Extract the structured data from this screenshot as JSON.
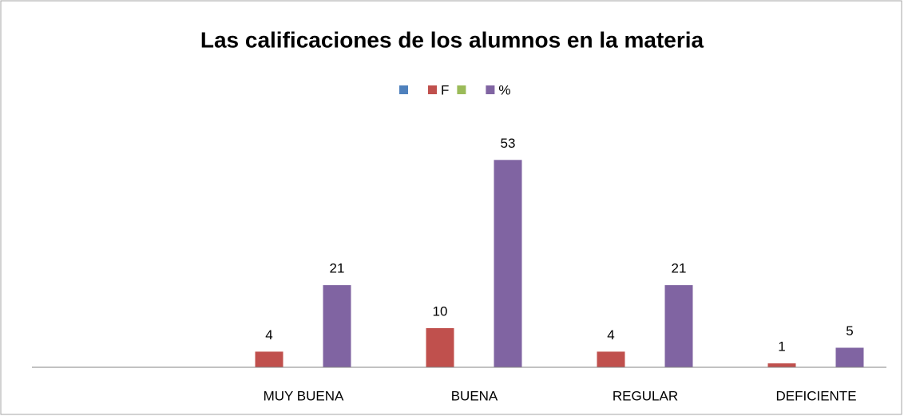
{
  "chart_data": {
    "type": "bar",
    "title": "Las calificaciones de los alumnos en la materia",
    "categories": [
      null,
      "MUY BUENA",
      "BUENA",
      "REGULAR",
      "DEFICIENTE"
    ],
    "series": [
      {
        "name": null,
        "color": "#4f81bd",
        "values": [
          null,
          null,
          null,
          null,
          null
        ]
      },
      {
        "name": "F",
        "color": "#c0504d",
        "values": [
          null,
          4,
          10,
          4,
          1
        ]
      },
      {
        "name": null,
        "color": "#9bbb59",
        "values": [
          null,
          null,
          null,
          null,
          null
        ]
      },
      {
        "name": "%",
        "color": "#8064a2",
        "values": [
          null,
          21,
          53,
          21,
          5
        ]
      }
    ],
    "ylim": [
      0,
      60
    ],
    "legend": "top"
  }
}
